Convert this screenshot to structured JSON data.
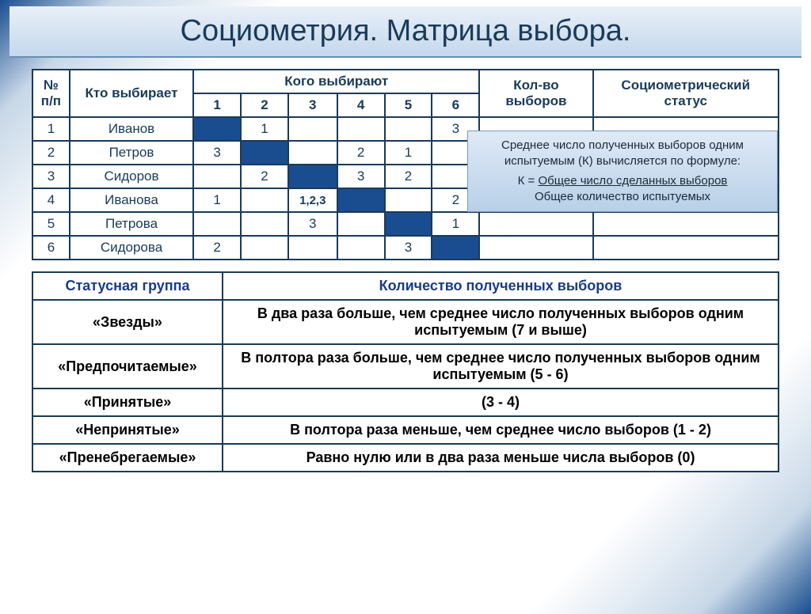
{
  "title": "Социометрия. Матрица выбора.",
  "matrix": {
    "header_num": "№ п/п",
    "header_who": "Кто выбирает",
    "header_whom": "Кого выбирают",
    "header_count": "Кол-во выборов",
    "header_status": "Социометрический статус",
    "col_labels": [
      "1",
      "2",
      "3",
      "4",
      "5",
      "6"
    ],
    "rows": [
      {
        "n": "1",
        "name": "Иванов",
        "cells": [
          "",
          "1",
          "",
          "",
          "",
          "3"
        ]
      },
      {
        "n": "2",
        "name": "Петров",
        "cells": [
          "3",
          "",
          "",
          "2",
          "1",
          ""
        ]
      },
      {
        "n": "3",
        "name": "Сидоров",
        "cells": [
          "",
          "2",
          "",
          "3",
          "2",
          ""
        ]
      },
      {
        "n": "4",
        "name": "Иванова",
        "cells": [
          "1",
          "",
          "1,2,3",
          "",
          "",
          "2"
        ]
      },
      {
        "n": "5",
        "name": "Петрова",
        "cells": [
          "",
          "",
          "3",
          "",
          "",
          "1"
        ]
      },
      {
        "n": "6",
        "name": "Сидорова",
        "cells": [
          "2",
          "",
          "",
          "",
          "3",
          ""
        ]
      }
    ]
  },
  "formula": {
    "line1": "Среднее число полученных  выборов одним испытуемым  (К) вычисляется по формуле:",
    "k_label": "К =",
    "numerator": "Общее число сделанных выборов",
    "denominator": "Общее количество испытуемых"
  },
  "status_table": {
    "header_group": "Статусная группа",
    "header_count": "Количество полученных выборов",
    "rows": [
      {
        "group": "«Звезды»",
        "desc": "В два раза больше, чем среднее число полученных выборов одним испытуемым  (7 и выше)"
      },
      {
        "group": "«Предпочитаемые»",
        "desc": "В полтора раза больше, чем среднее число полученных выборов одним испытуемым   (5 -  6)"
      },
      {
        "group": "«Принятые»",
        "desc": "(3 - 4)"
      },
      {
        "group": "«Непринятые»",
        "desc": "В полтора раза меньше, чем среднее число выборов (1 - 2)"
      },
      {
        "group": "«Пренебрегаемые»",
        "desc": "Равно нулю или в два раза меньше числа выборов (0)"
      }
    ]
  },
  "colors": {
    "border": "#1a3a5a",
    "diag_fill": "#1a4d8f",
    "title_bg_top": "#e8f0f8",
    "title_bg_bot": "#c4d8ec",
    "formula_bg_top": "#dfeaf6",
    "formula_bg_bot": "#b8d0e8"
  }
}
